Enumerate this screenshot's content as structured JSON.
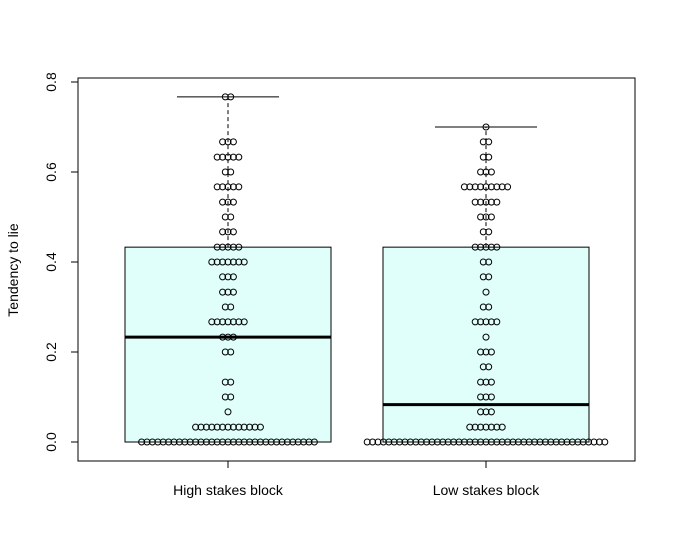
{
  "chart_data": {
    "type": "boxplot",
    "title": "",
    "xlabel": "",
    "ylabel": "Tendency to lie",
    "ylim": [
      0,
      0.8
    ],
    "y_ticks": [
      "0.0",
      "0.2",
      "0.4",
      "0.6",
      "0.8"
    ],
    "y_tick_values": [
      0,
      0.2,
      0.4,
      0.6,
      0.8
    ],
    "box_color": "#E0FFFA",
    "grid": false,
    "categories": [
      "High stakes block",
      "Low stakes block"
    ],
    "boxes": [
      {
        "name": "High stakes block",
        "lower_whisker": 0,
        "q1": 0,
        "median": 0.233,
        "q3": 0.433,
        "upper_whisker": 0.767,
        "points": [
          [
            0,
            33
          ],
          [
            0.033,
            13
          ],
          [
            0.067,
            1
          ],
          [
            0.1,
            2
          ],
          [
            0.133,
            2
          ],
          [
            0.2,
            2
          ],
          [
            0.233,
            3
          ],
          [
            0.267,
            7
          ],
          [
            0.3,
            2
          ],
          [
            0.333,
            3
          ],
          [
            0.367,
            3
          ],
          [
            0.4,
            7
          ],
          [
            0.433,
            5
          ],
          [
            0.467,
            3
          ],
          [
            0.5,
            2
          ],
          [
            0.533,
            3
          ],
          [
            0.567,
            5
          ],
          [
            0.6,
            2
          ],
          [
            0.633,
            5
          ],
          [
            0.667,
            3
          ],
          [
            0.767,
            2
          ]
        ]
      },
      {
        "name": "Low stakes block",
        "lower_whisker": 0,
        "q1": 0,
        "median": 0.083,
        "q3": 0.433,
        "upper_whisker": 0.7,
        "points": [
          [
            0,
            45
          ],
          [
            0.033,
            7
          ],
          [
            0.067,
            3
          ],
          [
            0.1,
            3
          ],
          [
            0.133,
            3
          ],
          [
            0.167,
            2
          ],
          [
            0.2,
            3
          ],
          [
            0.233,
            1
          ],
          [
            0.267,
            5
          ],
          [
            0.3,
            2
          ],
          [
            0.333,
            1
          ],
          [
            0.367,
            2
          ],
          [
            0.4,
            2
          ],
          [
            0.433,
            5
          ],
          [
            0.467,
            2
          ],
          [
            0.5,
            3
          ],
          [
            0.533,
            5
          ],
          [
            0.567,
            9
          ],
          [
            0.6,
            3
          ],
          [
            0.633,
            2
          ],
          [
            0.667,
            2
          ],
          [
            0.7,
            1
          ]
        ]
      }
    ]
  }
}
